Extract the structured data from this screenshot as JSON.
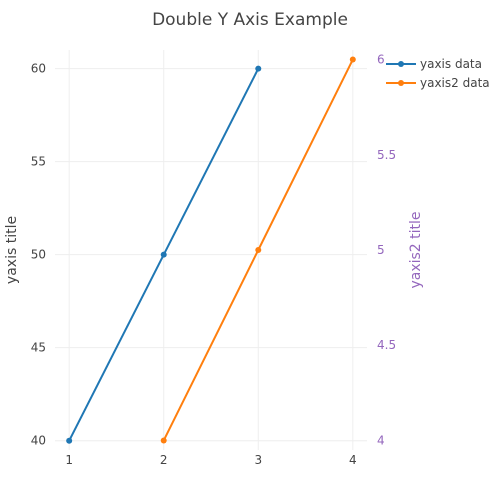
{
  "chart_data": {
    "type": "line",
    "title": "Double Y Axis Example",
    "xaxis": {
      "ticks": [
        1,
        2,
        3,
        4
      ],
      "range": [
        0.85,
        4.15
      ]
    },
    "yaxis": {
      "title": "yaxis title",
      "ticks": [
        40,
        45,
        50,
        55,
        60
      ],
      "range": [
        39.5,
        61
      ],
      "color": "#444444",
      "grid": true
    },
    "yaxis2": {
      "title": "yaxis2 title",
      "ticks": [
        4,
        4.5,
        5,
        5.5,
        6
      ],
      "tick_labels": [
        "4",
        "4.5",
        "5",
        "5.5",
        "6"
      ],
      "range": [
        3.95,
        6.05
      ],
      "color": "#9467bd",
      "side": "right"
    },
    "series": [
      {
        "name": "yaxis data",
        "x": [
          1,
          2,
          3
        ],
        "y": [
          40,
          50,
          60
        ],
        "axis": "y",
        "color": "#1f77b4"
      },
      {
        "name": "yaxis2 data",
        "x": [
          2,
          3,
          4
        ],
        "y": [
          4,
          5,
          6
        ],
        "axis": "y2",
        "color": "#ff7f0e"
      }
    ],
    "legend": {
      "position": "top-right"
    }
  }
}
